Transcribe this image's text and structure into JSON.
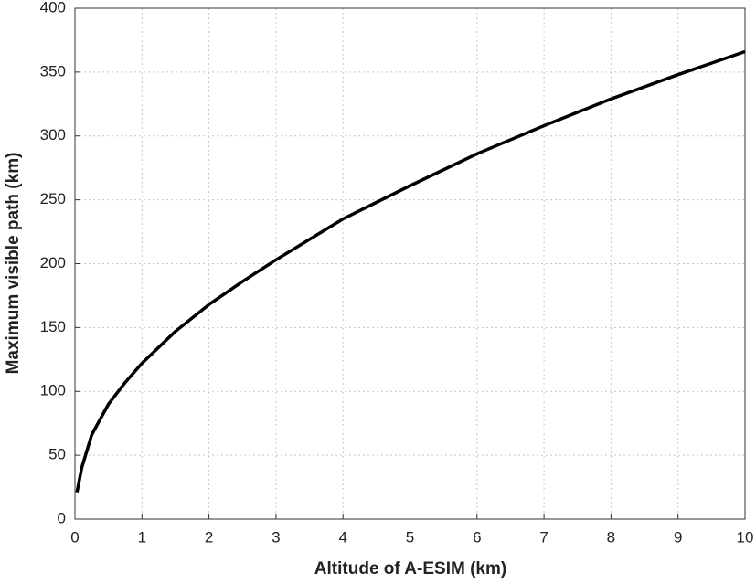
{
  "chart_data": {
    "type": "line",
    "x_label": "Altitude of A-ESIM (km)",
    "y_label": "Maximum visible path (km)",
    "x": [
      0.03,
      0.1,
      0.25,
      0.5,
      0.75,
      1,
      1.5,
      2,
      2.5,
      3,
      4,
      5,
      6,
      7,
      8,
      9,
      10
    ],
    "series": [
      {
        "color": "#000000",
        "values": [
          21,
          40,
          66,
          90,
          107,
          122,
          147,
          168,
          186,
          203,
          235,
          261,
          286,
          308,
          329,
          348,
          366
        ]
      }
    ],
    "xlim": [
      0,
      10
    ],
    "xticks": [
      0,
      1,
      2,
      3,
      4,
      5,
      6,
      7,
      8,
      9,
      10
    ],
    "ylim": [
      0,
      400
    ],
    "yticks": [
      0,
      50,
      100,
      150,
      200,
      250,
      300,
      350,
      400
    ],
    "grid": true
  }
}
